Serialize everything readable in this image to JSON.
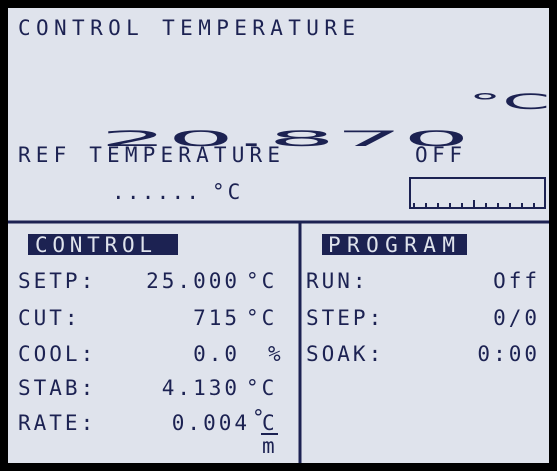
{
  "header": {
    "label": "CONTROL TEMPERATURE",
    "value": "20.870",
    "unit": "°C"
  },
  "reference": {
    "label": "REF TEMPERATURE",
    "value": "......",
    "unit": "°C",
    "status": "OFF"
  },
  "control": {
    "title": "CONTROL",
    "rows": [
      {
        "label": "SETP:",
        "value": "25.000",
        "unit": "°C"
      },
      {
        "label": "CUT:",
        "value": "715",
        "unit": "°C"
      },
      {
        "label": "COOL:",
        "value": "0.0",
        "unit": "%"
      },
      {
        "label": "STAB:",
        "value": "4.130",
        "unit": "°C"
      },
      {
        "label": "RATE:",
        "value": "0.004",
        "unit": "°",
        "unit_numerator": "C",
        "unit_denominator": "m"
      }
    ]
  },
  "program": {
    "title": "PROGRAM",
    "rows": [
      {
        "label": "RUN:",
        "value": "Off"
      },
      {
        "label": "STEP:",
        "value": "0/0"
      },
      {
        "label": "SOAK:",
        "value": "0:00"
      }
    ]
  }
}
